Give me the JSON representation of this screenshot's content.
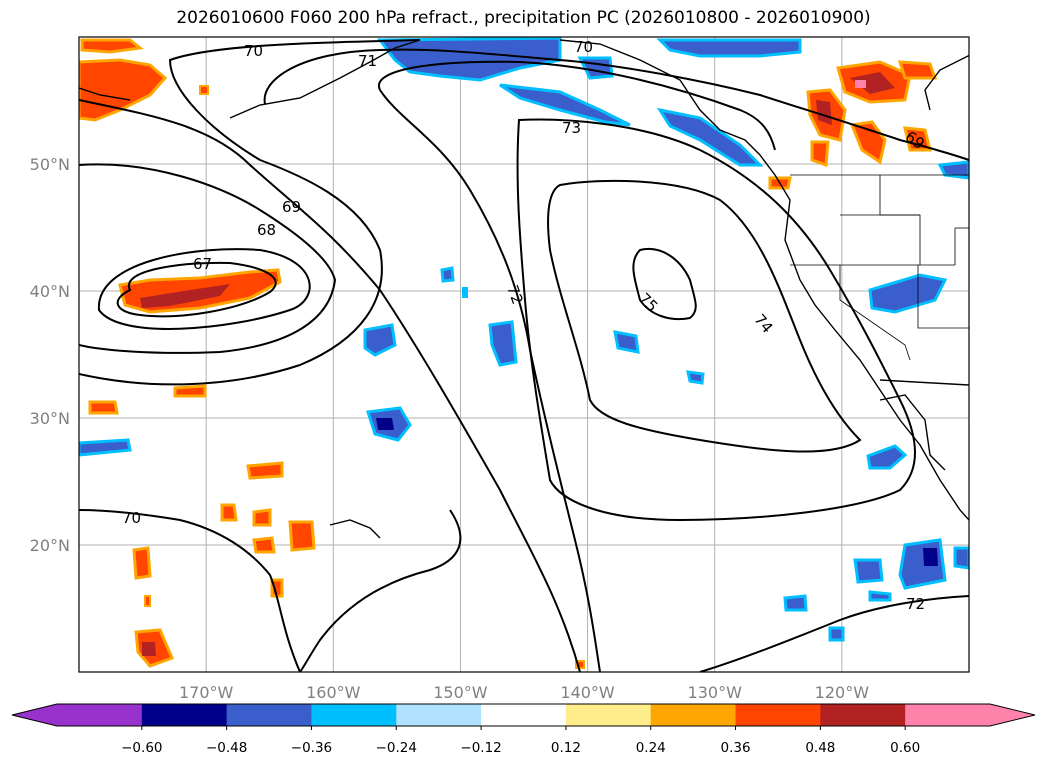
{
  "title": "2026010600 F060 200 hPa refract., precipitation PC (2026010800 - 2026010900)",
  "map": {
    "lon_range": [
      -180,
      -110
    ],
    "lat_range": [
      10,
      60
    ],
    "lon_ticks": [
      {
        "value": -170,
        "label": "170°W"
      },
      {
        "value": -160,
        "label": "160°W"
      },
      {
        "value": -150,
        "label": "150°W"
      },
      {
        "value": -140,
        "label": "140°W"
      },
      {
        "value": -130,
        "label": "130°W"
      },
      {
        "value": -120,
        "label": "120°W"
      }
    ],
    "lat_ticks": [
      {
        "value": 20,
        "label": "20°N"
      },
      {
        "value": 30,
        "label": "30°N"
      },
      {
        "value": 40,
        "label": "40°N"
      },
      {
        "value": 50,
        "label": "50°N"
      }
    ],
    "contour_labels": [
      "70",
      "70",
      "71",
      "73",
      "69",
      "68",
      "67",
      "72",
      "75",
      "74",
      "69",
      "70",
      "72"
    ],
    "tick_color": "#808080"
  },
  "colorbar": {
    "boundaries": [
      -0.72,
      -0.6,
      -0.48,
      -0.36,
      -0.24,
      -0.12,
      0.12,
      0.24,
      0.36,
      0.48,
      0.6,
      0.72
    ],
    "colors": [
      "#9932cc",
      "#00008b",
      "#3a5fcd",
      "#00bfff",
      "#b0e2ff",
      "#ffffff",
      "#ffec8b",
      "#ffa500",
      "#ff4500",
      "#b22222",
      "#ff82ab"
    ],
    "under_color": "#9932cc",
    "over_color": "#ff82ab",
    "tick_labels": [
      "−0.60",
      "−0.48",
      "−0.36",
      "−0.24",
      "−0.12",
      "0.12",
      "0.24",
      "0.36",
      "0.48",
      "0.60"
    ]
  }
}
